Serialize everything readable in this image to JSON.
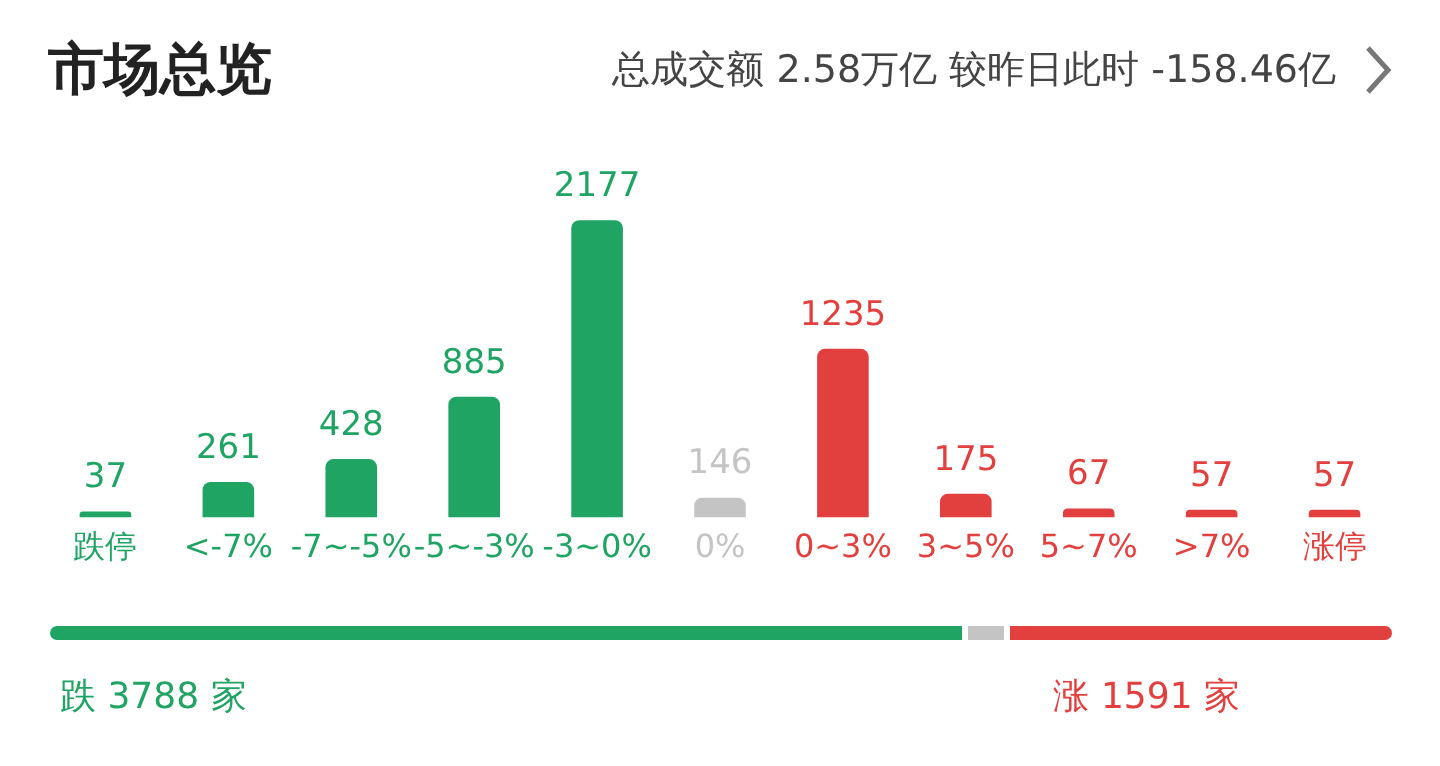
{
  "chart_data": {
    "type": "bar",
    "title": "市场总览",
    "subtitle": "总成交额 2.58万亿 较昨日此时 -158.46亿",
    "categories": [
      "跌停",
      "<-7%",
      "-7~-5%",
      "-5~-3%",
      "-3~0%",
      "0%",
      "0~3%",
      "3~5%",
      "5~7%",
      ">7%",
      "涨停"
    ],
    "values": [
      37,
      261,
      428,
      885,
      2177,
      146,
      1235,
      175,
      67,
      57,
      57
    ],
    "colors": [
      "#1fa463",
      "#1fa463",
      "#1fa463",
      "#1fa463",
      "#1fa463",
      "#c4c4c4",
      "#e2403f",
      "#e2403f",
      "#e2403f",
      "#e2403f",
      "#e2403f"
    ],
    "data_labels": true,
    "grid": false,
    "legend": false,
    "annotations": [
      "跌 3788 家",
      "涨 1591 家"
    ]
  }
}
